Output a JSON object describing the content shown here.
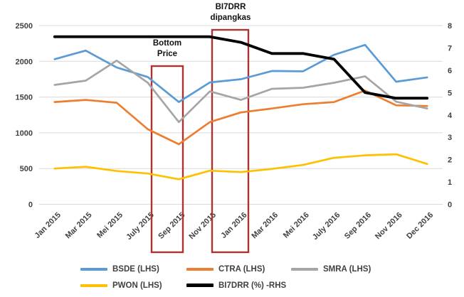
{
  "chart_data": {
    "type": "line",
    "title": "",
    "categories": [
      "Jan 2015",
      "Mar 2015",
      "Mei 2015",
      "July 2015",
      "Sep 2015",
      "Nov 2015",
      "Jan 2016",
      "Mar 2016",
      "Mei 2016",
      "July 2016",
      "Sep 2016",
      "Nov 2016",
      "Dec 2016"
    ],
    "series": [
      {
        "name": "BSDE (LHS)",
        "axis": "left",
        "color": "#5B9BD5",
        "values": [
          2030,
          2150,
          1915,
          1780,
          1430,
          1705,
          1750,
          1865,
          1860,
          2090,
          2230,
          1715,
          1775
        ]
      },
      {
        "name": "CTRA (LHS)",
        "axis": "left",
        "color": "#ED7D31",
        "values": [
          1430,
          1460,
          1420,
          1050,
          840,
          1150,
          1285,
          1340,
          1400,
          1430,
          1590,
          1385,
          1375
        ]
      },
      {
        "name": "SMRA (LHS)",
        "axis": "left",
        "color": "#A5A5A5",
        "values": [
          1670,
          1730,
          2010,
          1700,
          1150,
          1580,
          1460,
          1615,
          1630,
          1700,
          1790,
          1435,
          1340
        ]
      },
      {
        "name": "PWON (LHS)",
        "axis": "left",
        "color": "#FFC000",
        "values": [
          500,
          525,
          465,
          430,
          350,
          470,
          450,
          495,
          550,
          650,
          685,
          700,
          565
        ]
      },
      {
        "name": "BI7DRR (%) -RHS",
        "axis": "right",
        "color": "#000000",
        "values": [
          7.5,
          7.5,
          7.5,
          7.5,
          7.5,
          7.5,
          7.25,
          6.75,
          6.75,
          6.5,
          5.0,
          4.75,
          4.75
        ]
      }
    ],
    "left_axis": {
      "min": 0,
      "max": 2500,
      "step": 500,
      "tick_labels": [
        "0",
        "500",
        "1000",
        "1500",
        "2000",
        "2500"
      ]
    },
    "right_axis": {
      "min": 0,
      "max": 8,
      "step": 1,
      "tick_labels": [
        "0",
        "1",
        "2",
        "3",
        "4",
        "5",
        "6",
        "7",
        "8"
      ]
    },
    "grid": true,
    "gridline_color": "#D9D9D9",
    "legend_position": "bottom",
    "annotations": [
      {
        "text": "Bottom Price",
        "lines": [
          "Bottom",
          "Price"
        ],
        "from_category": "July 2015",
        "to_category": "Sep 2015",
        "box_color": "#A93432"
      },
      {
        "text": "BI7DRR dipangkas",
        "lines": [
          "BI7DRR",
          "dipangkas"
        ],
        "from_category": "Nov 2015",
        "to_category": "Jan 2016",
        "box_color": "#A93432"
      }
    ]
  }
}
